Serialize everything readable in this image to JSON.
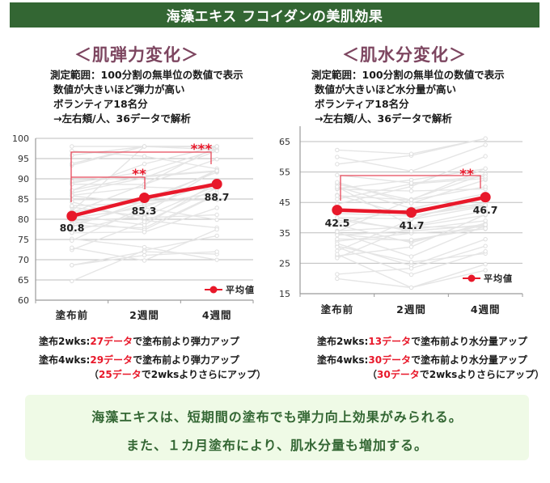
{
  "header": {
    "title": "海藻エキス フコイダンの美肌効果"
  },
  "colors": {
    "title_bar": "#336633",
    "heading": "#7d4660",
    "mean_line": "#e8182a",
    "highlight": "#e8182a",
    "footer_bg": "#effae6",
    "footer_text": "#336633"
  },
  "sections": [
    {
      "heading": "＜肌弾力変化＞",
      "description": [
        "測定範囲：100分割の無単位の数値で表示",
        "数値が大きいほど弾力が高い",
        "ボランティア18名分",
        "→左右頬/人、36データで解析"
      ],
      "notes": [
        {
          "prefix": "塗布2wks:",
          "highlight": "27データ",
          "suffix": "で塗布前より弾力アップ"
        },
        {
          "prefix": "塗布4wks:",
          "highlight": "29データ",
          "suffix": "で塗布前より弾力アップ"
        },
        {
          "prefix": "（",
          "highlight": "25データ",
          "suffix": "で2wksよりさらにアップ）"
        }
      ]
    },
    {
      "heading": "＜肌水分変化＞",
      "description": [
        "測定範囲：100分割の無単位の数値で表示",
        "数値が大きいほど水分量が高い",
        "ボランティア18名分",
        "→左右頬/人、36データで解析"
      ],
      "notes": [
        {
          "prefix": "塗布2wks:",
          "highlight": "13データ",
          "suffix": "で塗布前より水分量アップ"
        },
        {
          "prefix": "塗布4wks:",
          "highlight": "30データ",
          "suffix": "で塗布前より水分量アップ"
        },
        {
          "prefix": "（",
          "highlight": "30データ",
          "suffix": "で2wksよりさらにアップ）"
        }
      ]
    }
  ],
  "footer": {
    "lines": [
      "海藻エキスは、短期間の塗布でも弾力向上効果がみられる。",
      "また、１カ月塗布により、肌水分量も増加する。"
    ]
  },
  "chart_data": [
    {
      "type": "line",
      "title": "＜肌弾力変化＞",
      "categories": [
        "塗布前",
        "2週間",
        "4週間"
      ],
      "series": [
        {
          "name": "平均値",
          "values": [
            80.8,
            85.3,
            88.7
          ],
          "color": "#e8182a"
        }
      ],
      "value_labels": [
        "80.8",
        "85.3",
        "88.7"
      ],
      "xlabel": "",
      "ylabel": "",
      "ylim": [
        60,
        100
      ],
      "yticks": [
        60,
        65,
        70,
        75,
        80,
        85,
        90,
        95,
        100
      ],
      "grid": true,
      "legend_position": "bottom-right",
      "significance": [
        {
          "from": "塗布前",
          "to": "2週間",
          "label": "**"
        },
        {
          "from": "塗布前",
          "to": "4週間",
          "label": "***"
        }
      ],
      "background": "faint gray individual-subject lines (36 data)"
    },
    {
      "type": "line",
      "title": "＜肌水分変化＞",
      "categories": [
        "塗布前",
        "2週間",
        "4週間"
      ],
      "series": [
        {
          "name": "平均値",
          "values": [
            42.5,
            41.7,
            46.7
          ],
          "color": "#e8182a"
        }
      ],
      "value_labels": [
        "42.5",
        "41.7",
        "46.7"
      ],
      "xlabel": "",
      "ylabel": "",
      "ylim": [
        15,
        65
      ],
      "yticks": [
        15,
        25,
        35,
        45,
        55,
        65
      ],
      "grid": true,
      "legend_position": "bottom-right",
      "significance": [
        {
          "from": "塗布前",
          "to": "4週間",
          "label": "**"
        }
      ],
      "background": "faint gray individual-subject lines (36 data)"
    }
  ]
}
